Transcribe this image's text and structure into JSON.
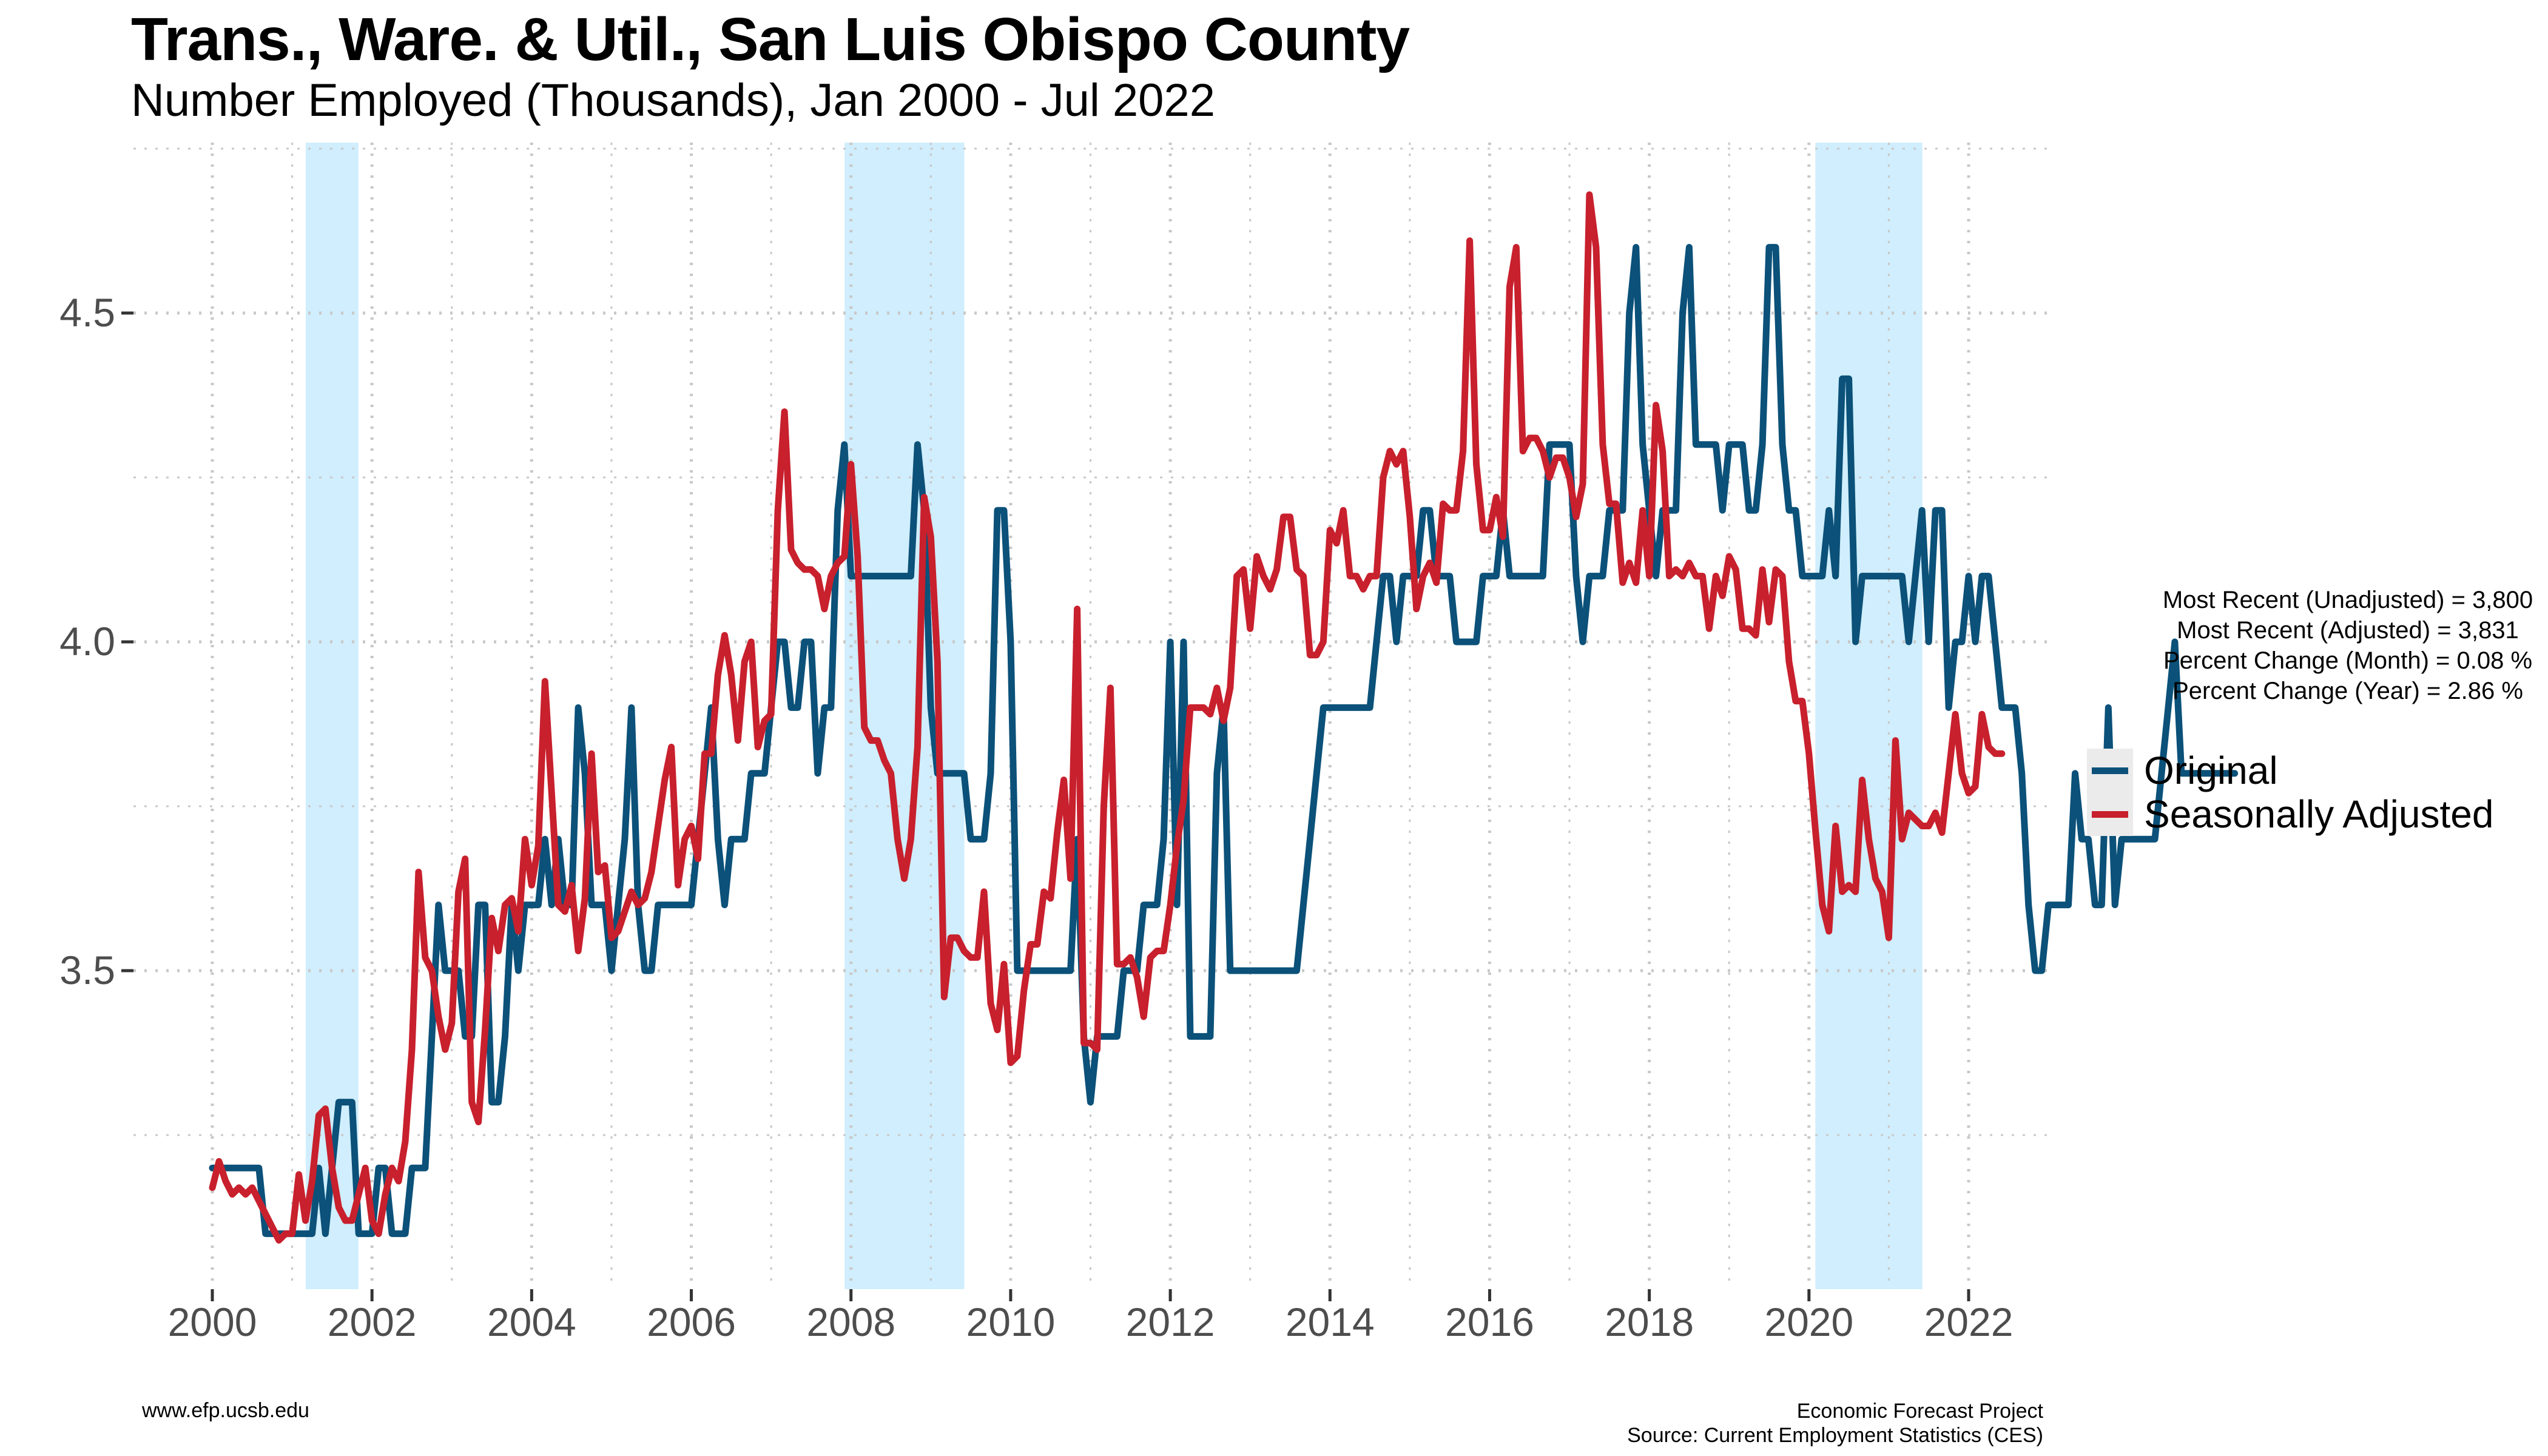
{
  "title": "Trans., Ware. & Util., San Luis Obispo County",
  "subtitle": "Number Employed (Thousands), Jan 2000 - Jul 2022",
  "stats": [
    "Most Recent (Unadjusted) = 3,800",
    "Most Recent (Adjusted) = 3,831",
    "Percent Change (Month) = 0.08 %",
    "Percent Change (Year) = 2.86 %"
  ],
  "legend": {
    "original": "Original",
    "adjusted": "Seasonally Adjusted"
  },
  "footer": {
    "left": "www.efp.ucsb.edu",
    "right_line1": "Economic Forecast Project",
    "right_line2": "Source: Current Employment Statistics (CES)"
  },
  "colors": {
    "original": "#0b5179",
    "adjusted": "#c8202d",
    "recession": "#d0eefd",
    "grid": "#c8c8c8"
  },
  "chart_data": {
    "type": "line",
    "title": "Trans., Ware. & Util., San Luis Obispo County",
    "xlabel": "",
    "ylabel": "",
    "xlim": [
      2000.0,
      2022.583
    ],
    "ylim": [
      3.01,
      4.76
    ],
    "x_ticks": [
      2000,
      2002,
      2004,
      2006,
      2008,
      2010,
      2012,
      2014,
      2016,
      2018,
      2020,
      2022
    ],
    "x_tick_labels": [
      "2000",
      "2002",
      "2004",
      "2006",
      "2008",
      "2010",
      "2012",
      "2014",
      "2016",
      "2018",
      "2020",
      "2022"
    ],
    "y_ticks": [
      3.5,
      4.0,
      4.5
    ],
    "y_tick_labels": [
      "3.5",
      "4.0",
      "4.5"
    ],
    "grid": true,
    "legend_position": "right",
    "recessions": [
      [
        2001.17,
        2001.83
      ],
      [
        2007.92,
        2009.42
      ],
      [
        2020.08,
        2021.42
      ]
    ],
    "series": [
      {
        "name": "Original",
        "start": "2000-01",
        "values": [
          3.2,
          3.2,
          3.2,
          3.2,
          3.2,
          3.2,
          3.2,
          3.2,
          3.1,
          3.1,
          3.1,
          3.1,
          3.1,
          3.1,
          3.1,
          3.1,
          3.2,
          3.1,
          3.2,
          3.3,
          3.3,
          3.3,
          3.1,
          3.1,
          3.1,
          3.2,
          3.2,
          3.1,
          3.1,
          3.1,
          3.2,
          3.2,
          3.2,
          3.4,
          3.6,
          3.5,
          3.5,
          3.5,
          3.4,
          3.4,
          3.6,
          3.6,
          3.3,
          3.3,
          3.4,
          3.6,
          3.5,
          3.6,
          3.6,
          3.6,
          3.7,
          3.6,
          3.7,
          3.6,
          3.6,
          3.9,
          3.8,
          3.6,
          3.6,
          3.6,
          3.5,
          3.6,
          3.7,
          3.9,
          3.6,
          3.5,
          3.5,
          3.6,
          3.6,
          3.6,
          3.6,
          3.6,
          3.6,
          3.7,
          3.8,
          3.9,
          3.7,
          3.6,
          3.7,
          3.7,
          3.7,
          3.8,
          3.8,
          3.8,
          3.9,
          4.0,
          4.0,
          3.9,
          3.9,
          4.0,
          4.0,
          3.8,
          3.9,
          3.9,
          4.2,
          4.3,
          4.1,
          4.1,
          4.1,
          4.1,
          4.1,
          4.1,
          4.1,
          4.1,
          4.1,
          4.1,
          4.3,
          4.2,
          3.9,
          3.8,
          3.8,
          3.8,
          3.8,
          3.8,
          3.7,
          3.7,
          3.7,
          3.8,
          4.2,
          4.2,
          4.0,
          3.5,
          3.5,
          3.5,
          3.5,
          3.5,
          3.5,
          3.5,
          3.5,
          3.5,
          3.7,
          3.4,
          3.3,
          3.4,
          3.4,
          3.4,
          3.4,
          3.5,
          3.5,
          3.5,
          3.6,
          3.6,
          3.6,
          3.7,
          4.0,
          3.6,
          4.0,
          3.4,
          3.4,
          3.4,
          3.4,
          3.8,
          3.9,
          3.5,
          3.5,
          3.5,
          3.5,
          3.5,
          3.5,
          3.5,
          3.5,
          3.5,
          3.5,
          3.5,
          3.6,
          3.7,
          3.8,
          3.9,
          3.9,
          3.9,
          3.9,
          3.9,
          3.9,
          3.9,
          3.9,
          4.0,
          4.1,
          4.1,
          4.0,
          4.1,
          4.1,
          4.1,
          4.2,
          4.2,
          4.1,
          4.1,
          4.1,
          4.0,
          4.0,
          4.0,
          4.0,
          4.1,
          4.1,
          4.1,
          4.2,
          4.1,
          4.1,
          4.1,
          4.1,
          4.1,
          4.1,
          4.3,
          4.3,
          4.3,
          4.3,
          4.1,
          4.0,
          4.1,
          4.1,
          4.1,
          4.2,
          4.2,
          4.2,
          4.5,
          4.6,
          4.3,
          4.2,
          4.1,
          4.2,
          4.2,
          4.2,
          4.5,
          4.6,
          4.3,
          4.3,
          4.3,
          4.3,
          4.2,
          4.3,
          4.3,
          4.3,
          4.2,
          4.2,
          4.3,
          4.6,
          4.6,
          4.3,
          4.2,
          4.2,
          4.1,
          4.1,
          4.1,
          4.1,
          4.2,
          4.1,
          4.4,
          4.4,
          4.0,
          4.1,
          4.1,
          4.1,
          4.1,
          4.1,
          4.1,
          4.1,
          4.0,
          4.1,
          4.2,
          4.0,
          4.2,
          4.2,
          3.9,
          4.0,
          4.0,
          4.1,
          4.0,
          4.1,
          4.1,
          4.0,
          3.9,
          3.9,
          3.9,
          3.8,
          3.6,
          3.5,
          3.5,
          3.6,
          3.6,
          3.6,
          3.6,
          3.8,
          3.7,
          3.7,
          3.6,
          3.6,
          3.9,
          3.6,
          3.7,
          3.7,
          3.7,
          3.7,
          3.7,
          3.7,
          3.8,
          3.9,
          4.0,
          3.8,
          3.8,
          3.8,
          3.8,
          3.8,
          3.8,
          3.8,
          3.8,
          3.8
        ]
      },
      {
        "name": "Seasonally Adjusted",
        "start": "2000-01",
        "values": [
          3.17,
          3.21,
          3.18,
          3.16,
          3.17,
          3.16,
          3.17,
          3.15,
          3.13,
          3.11,
          3.09,
          3.1,
          3.1,
          3.19,
          3.12,
          3.18,
          3.28,
          3.29,
          3.2,
          3.14,
          3.12,
          3.12,
          3.16,
          3.2,
          3.12,
          3.1,
          3.16,
          3.2,
          3.18,
          3.24,
          3.38,
          3.65,
          3.52,
          3.5,
          3.43,
          3.38,
          3.42,
          3.62,
          3.67,
          3.3,
          3.27,
          3.41,
          3.58,
          3.53,
          3.6,
          3.61,
          3.56,
          3.7,
          3.63,
          3.69,
          3.94,
          3.77,
          3.6,
          3.59,
          3.63,
          3.53,
          3.61,
          3.83,
          3.65,
          3.66,
          3.55,
          3.56,
          3.59,
          3.62,
          3.6,
          3.61,
          3.65,
          3.72,
          3.79,
          3.84,
          3.63,
          3.7,
          3.72,
          3.67,
          3.83,
          3.83,
          3.95,
          4.01,
          3.95,
          3.85,
          3.97,
          4.0,
          3.84,
          3.88,
          3.89,
          4.2,
          4.35,
          4.14,
          4.12,
          4.11,
          4.11,
          4.1,
          4.05,
          4.1,
          4.12,
          4.13,
          4.27,
          4.13,
          3.87,
          3.85,
          3.85,
          3.82,
          3.8,
          3.7,
          3.64,
          3.7,
          3.84,
          4.22,
          4.16,
          3.97,
          3.46,
          3.55,
          3.55,
          3.53,
          3.52,
          3.52,
          3.62,
          3.45,
          3.41,
          3.51,
          3.36,
          3.37,
          3.47,
          3.54,
          3.54,
          3.62,
          3.61,
          3.71,
          3.79,
          3.64,
          4.05,
          3.39,
          3.39,
          3.38,
          3.75,
          3.93,
          3.51,
          3.51,
          3.52,
          3.49,
          3.43,
          3.52,
          3.53,
          3.53,
          3.6,
          3.69,
          3.76,
          3.9,
          3.9,
          3.9,
          3.89,
          3.93,
          3.88,
          3.93,
          4.1,
          4.11,
          4.02,
          4.13,
          4.1,
          4.08,
          4.11,
          4.19,
          4.19,
          4.11,
          4.1,
          3.98,
          3.98,
          4.0,
          4.17,
          4.15,
          4.2,
          4.1,
          4.1,
          4.08,
          4.1,
          4.1,
          4.25,
          4.29,
          4.27,
          4.29,
          4.19,
          4.05,
          4.1,
          4.12,
          4.09,
          4.21,
          4.2,
          4.2,
          4.29,
          4.61,
          4.27,
          4.17,
          4.17,
          4.22,
          4.16,
          4.54,
          4.6,
          4.29,
          4.31,
          4.31,
          4.29,
          4.25,
          4.28,
          4.28,
          4.25,
          4.19,
          4.24,
          4.68,
          4.6,
          4.3,
          4.21,
          4.21,
          4.09,
          4.12,
          4.09,
          4.2,
          4.1,
          4.36,
          4.29,
          4.1,
          4.11,
          4.1,
          4.12,
          4.1,
          4.1,
          4.02,
          4.1,
          4.07,
          4.13,
          4.11,
          4.02,
          4.02,
          4.01,
          4.11,
          4.03,
          4.11,
          4.1,
          3.97,
          3.91,
          3.91,
          3.83,
          3.71,
          3.6,
          3.56,
          3.72,
          3.62,
          3.63,
          3.62,
          3.79,
          3.7,
          3.64,
          3.62,
          3.55,
          3.85,
          3.7,
          3.74,
          3.73,
          3.72,
          3.72,
          3.74,
          3.71,
          3.8,
          3.89,
          3.8,
          3.77,
          3.78,
          3.89,
          3.84,
          3.83,
          3.83
        ]
      }
    ]
  }
}
